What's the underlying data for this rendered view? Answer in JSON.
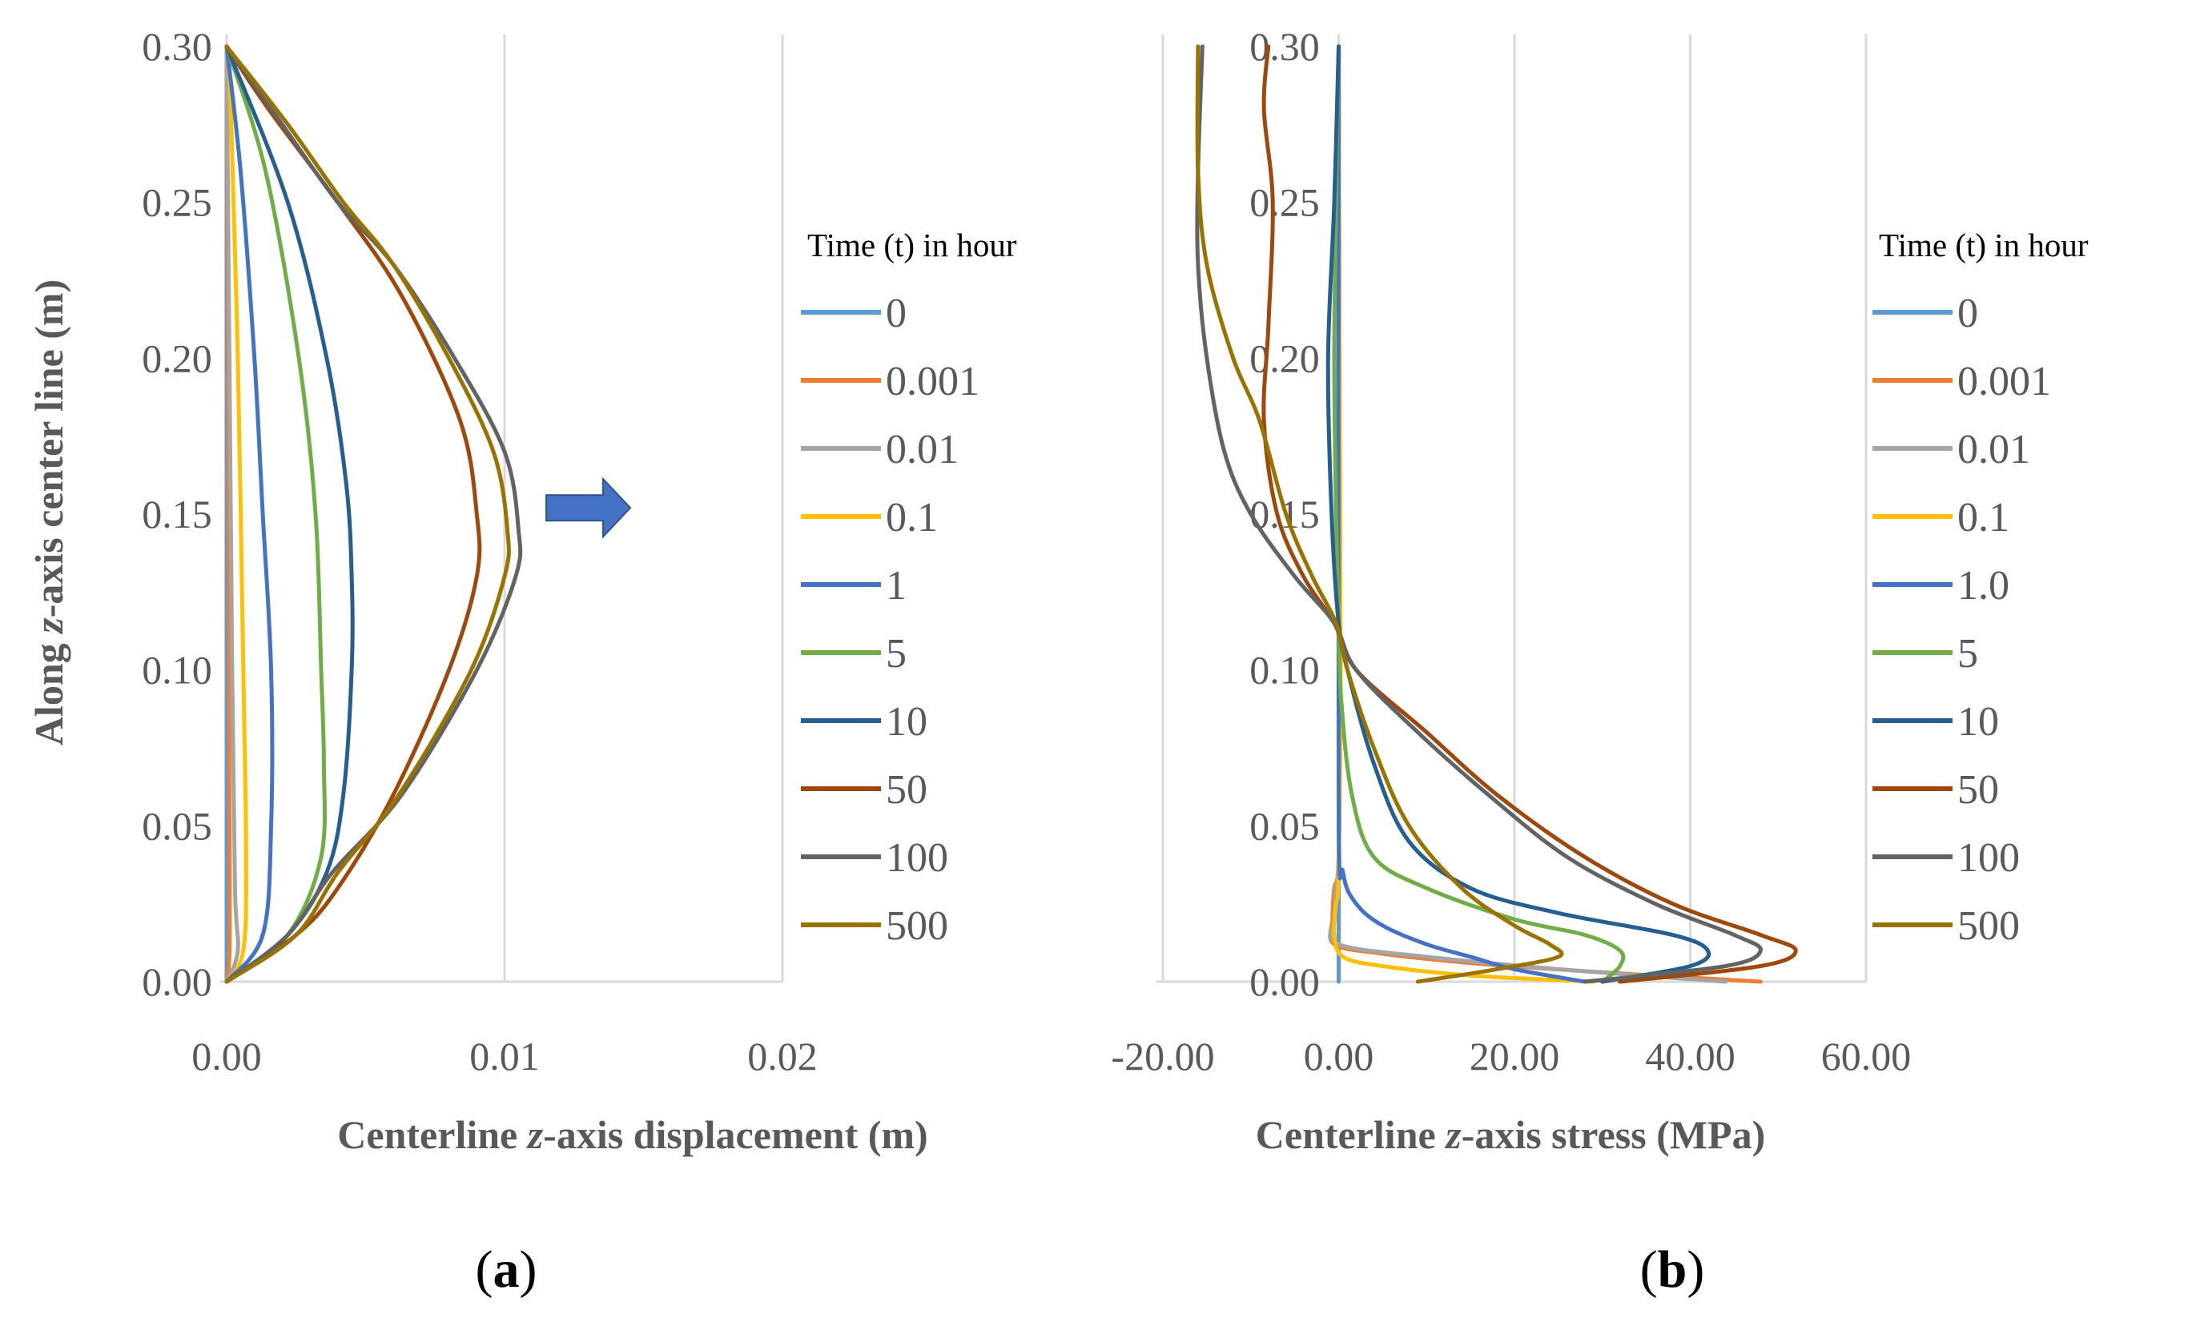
{
  "panel_labels": {
    "a": "a",
    "b": "b"
  },
  "chart_data": [
    {
      "type": "line",
      "panel": "a",
      "xlabel": {
        "pre": "Centerline ",
        "var": "z",
        "post": "-axis displacement (m)"
      },
      "ylabel": {
        "pre": "Along ",
        "var": "z",
        "post": "-axis center line (m)"
      },
      "xlim": [
        0,
        0.02
      ],
      "ylim": [
        0,
        0.3
      ],
      "x_ticks": [
        0,
        0.01,
        0.02
      ],
      "x_tick_labels": [
        "0.00",
        "0.01",
        "0.02"
      ],
      "y_ticks": [
        0,
        0.05,
        0.1,
        0.15,
        0.2,
        0.25,
        0.3
      ],
      "y_tick_labels": [
        "0.00",
        "0.05",
        "0.10",
        "0.15",
        "0.20",
        "0.25",
        "0.30"
      ],
      "grid": "vertical",
      "legend": {
        "title": "Time (t) in hour",
        "placement": "right"
      },
      "annotation": {
        "type": "arrow",
        "direction": "right",
        "x": 0.0115,
        "y": 0.152,
        "color": "#4472C4"
      },
      "series": [
        {
          "name": "0",
          "color": "#5B9BD5",
          "points": [
            [
              0,
              0
            ],
            [
              0,
              0.3
            ]
          ]
        },
        {
          "name": "0.001",
          "color": "#ED7D31",
          "points": [
            [
              0,
              0
            ],
            [
              0.0001,
              0.01
            ],
            [
              0.0001,
              0.05
            ],
            [
              5e-05,
              0.2
            ],
            [
              0,
              0.3
            ]
          ]
        },
        {
          "name": "0.01",
          "color": "#A5A5A5",
          "points": [
            [
              0,
              0
            ],
            [
              0.0004,
              0.01
            ],
            [
              0.0003,
              0.03
            ],
            [
              0.0002,
              0.1
            ],
            [
              0.0001,
              0.2
            ],
            [
              0,
              0.3
            ]
          ]
        },
        {
          "name": "0.1",
          "color": "#FFC000",
          "points": [
            [
              0,
              0
            ],
            [
              0.0006,
              0.01
            ],
            [
              0.0007,
              0.04
            ],
            [
              0.0006,
              0.1
            ],
            [
              0.0004,
              0.2
            ],
            [
              0.00015,
              0.28
            ],
            [
              0,
              0.3
            ]
          ]
        },
        {
          "name": "1",
          "color": "#4472C4",
          "points": [
            [
              0,
              0
            ],
            [
              0.0013,
              0.015
            ],
            [
              0.0016,
              0.05
            ],
            [
              0.0016,
              0.1
            ],
            [
              0.0013,
              0.15
            ],
            [
              0.001,
              0.2
            ],
            [
              0.0005,
              0.26
            ],
            [
              0,
              0.3
            ]
          ]
        },
        {
          "name": "5",
          "color": "#70AD47",
          "points": [
            [
              0,
              0
            ],
            [
              0.0022,
              0.015
            ],
            [
              0.0034,
              0.04
            ],
            [
              0.0035,
              0.07
            ],
            [
              0.0034,
              0.1
            ],
            [
              0.0032,
              0.15
            ],
            [
              0.0026,
              0.2
            ],
            [
              0.0014,
              0.26
            ],
            [
              0,
              0.3
            ]
          ]
        },
        {
          "name": "10",
          "color": "#255E91",
          "points": [
            [
              0,
              0
            ],
            [
              0.0022,
              0.015
            ],
            [
              0.0036,
              0.035
            ],
            [
              0.0042,
              0.06
            ],
            [
              0.0045,
              0.1
            ],
            [
              0.0045,
              0.13
            ],
            [
              0.0043,
              0.16
            ],
            [
              0.0036,
              0.2
            ],
            [
              0.0022,
              0.25
            ],
            [
              0,
              0.3
            ]
          ]
        },
        {
          "name": "50",
          "color": "#9E480E",
          "points": [
            [
              0,
              0
            ],
            [
              0.0025,
              0.015
            ],
            [
              0.004,
              0.03
            ],
            [
              0.006,
              0.06
            ],
            [
              0.008,
              0.1
            ],
            [
              0.009,
              0.13
            ],
            [
              0.009,
              0.15
            ],
            [
              0.0084,
              0.18
            ],
            [
              0.0063,
              0.22
            ],
            [
              0.004,
              0.25
            ],
            [
              0.0015,
              0.28
            ],
            [
              0,
              0.3
            ]
          ]
        },
        {
          "name": "100",
          "color": "#636363",
          "points": [
            [
              0,
              0
            ],
            [
              0.0022,
              0.015
            ],
            [
              0.0038,
              0.035
            ],
            [
              0.0063,
              0.06
            ],
            [
              0.009,
              0.1
            ],
            [
              0.0104,
              0.13
            ],
            [
              0.0105,
              0.145
            ],
            [
              0.01,
              0.17
            ],
            [
              0.0082,
              0.2
            ],
            [
              0.006,
              0.23
            ],
            [
              0.004,
              0.25
            ],
            [
              0.002,
              0.275
            ],
            [
              0,
              0.3
            ]
          ]
        },
        {
          "name": "500",
          "color": "#997300",
          "points": [
            [
              0,
              0
            ],
            [
              0.0025,
              0.015
            ],
            [
              0.004,
              0.035
            ],
            [
              0.0062,
              0.06
            ],
            [
              0.0088,
              0.1
            ],
            [
              0.01,
              0.13
            ],
            [
              0.0101,
              0.145
            ],
            [
              0.0096,
              0.17
            ],
            [
              0.008,
              0.2
            ],
            [
              0.006,
              0.23
            ],
            [
              0.0042,
              0.25
            ],
            [
              0.0022,
              0.275
            ],
            [
              0,
              0.3
            ]
          ]
        }
      ]
    },
    {
      "type": "line",
      "panel": "b",
      "xlabel": {
        "pre": "Centerline ",
        "var": "z",
        "post": "-axis stress (MPa)"
      },
      "xlim": [
        -20,
        60
      ],
      "ylim": [
        0,
        0.3
      ],
      "x_ticks": [
        -20,
        0,
        20,
        40,
        60
      ],
      "x_tick_labels": [
        "-20.00",
        "0.00",
        "20.00",
        "40.00",
        "60.00"
      ],
      "y_ticks": [
        0,
        0.05,
        0.1,
        0.15,
        0.2,
        0.25,
        0.3
      ],
      "y_tick_labels": [
        "0.00",
        "0.05",
        "0.10",
        "0.15",
        "0.20",
        "0.25",
        "0.30"
      ],
      "grid": "vertical",
      "legend": {
        "title": "Time (t) in hour",
        "placement": "right"
      },
      "series": [
        {
          "name": "0",
          "color": "#5B9BD5",
          "points": [
            [
              0,
              0
            ],
            [
              0,
              0.3
            ]
          ]
        },
        {
          "name": "0.001",
          "color": "#ED7D31",
          "points": [
            [
              48,
              0
            ],
            [
              30,
              0.003
            ],
            [
              15,
              0.006
            ],
            [
              5,
              0.009
            ],
            [
              -0.5,
              0.012
            ],
            [
              -0.7,
              0.02
            ],
            [
              -0.5,
              0.03
            ],
            [
              0,
              0.04
            ],
            [
              0.2,
              0.1
            ],
            [
              0.1,
              0.2
            ],
            [
              0,
              0.3
            ]
          ]
        },
        {
          "name": "0.01",
          "color": "#A5A5A5",
          "points": [
            [
              44,
              0
            ],
            [
              25,
              0.004
            ],
            [
              10,
              0.008
            ],
            [
              0,
              0.012
            ],
            [
              -0.5,
              0.02
            ],
            [
              -0.3,
              0.03
            ],
            [
              0,
              0.04
            ],
            [
              0.2,
              0.1
            ],
            [
              0.1,
              0.2
            ],
            [
              0,
              0.3
            ]
          ]
        },
        {
          "name": "0.1",
          "color": "#FFC000",
          "points": [
            [
              29,
              0
            ],
            [
              15,
              0.002
            ],
            [
              5,
              0.005
            ],
            [
              0.5,
              0.008
            ],
            [
              -0.5,
              0.015
            ],
            [
              -0.3,
              0.025
            ],
            [
              0,
              0.035
            ],
            [
              0.2,
              0.1
            ],
            [
              0.1,
              0.2
            ],
            [
              0,
              0.3
            ]
          ]
        },
        {
          "name": "1.0",
          "color": "#4472C4",
          "points": [
            [
              28,
              0
            ],
            [
              20,
              0.004
            ],
            [
              15,
              0.008
            ],
            [
              10,
              0.012
            ],
            [
              5,
              0.018
            ],
            [
              2,
              0.025
            ],
            [
              0.5,
              0.035
            ],
            [
              0,
              0.06
            ],
            [
              0,
              0.3
            ]
          ]
        },
        {
          "name": "5",
          "color": "#70AD47",
          "points": [
            [
              30,
              0
            ],
            [
              32,
              0.005
            ],
            [
              32,
              0.01
            ],
            [
              28,
              0.015
            ],
            [
              20,
              0.02
            ],
            [
              10,
              0.03
            ],
            [
              4,
              0.04
            ],
            [
              1.5,
              0.06
            ],
            [
              0.3,
              0.09
            ],
            [
              0,
              0.115
            ],
            [
              -0.3,
              0.15
            ],
            [
              -0.5,
              0.2
            ],
            [
              -0.3,
              0.25
            ],
            [
              0,
              0.3
            ]
          ]
        },
        {
          "name": "10",
          "color": "#255E91",
          "points": [
            [
              30,
              0
            ],
            [
              40,
              0.005
            ],
            [
              42,
              0.01
            ],
            [
              38,
              0.015
            ],
            [
              25,
              0.022
            ],
            [
              15,
              0.03
            ],
            [
              8,
              0.045
            ],
            [
              4,
              0.07
            ],
            [
              1,
              0.1
            ],
            [
              0,
              0.115
            ],
            [
              -0.8,
              0.15
            ],
            [
              -1.2,
              0.2
            ],
            [
              -0.5,
              0.25
            ],
            [
              0,
              0.3
            ]
          ]
        },
        {
          "name": "50",
          "color": "#9E480E",
          "points": [
            [
              32,
              0
            ],
            [
              48,
              0.005
            ],
            [
              52,
              0.01
            ],
            [
              48,
              0.015
            ],
            [
              38,
              0.025
            ],
            [
              28,
              0.04
            ],
            [
              18,
              0.06
            ],
            [
              10,
              0.08
            ],
            [
              2,
              0.1
            ],
            [
              -0.5,
              0.115
            ],
            [
              -4,
              0.13
            ],
            [
              -7,
              0.15
            ],
            [
              -8.5,
              0.18
            ],
            [
              -8,
              0.21
            ],
            [
              -7.5,
              0.25
            ],
            [
              -8.5,
              0.28
            ],
            [
              -8,
              0.3
            ]
          ]
        },
        {
          "name": "100",
          "color": "#636363",
          "points": [
            [
              28,
              0
            ],
            [
              44,
              0.005
            ],
            [
              48,
              0.01
            ],
            [
              45,
              0.015
            ],
            [
              36,
              0.025
            ],
            [
              26,
              0.04
            ],
            [
              17,
              0.06
            ],
            [
              9,
              0.08
            ],
            [
              2,
              0.1
            ],
            [
              -0.5,
              0.115
            ],
            [
              -5,
              0.13
            ],
            [
              -10,
              0.15
            ],
            [
              -13,
              0.17
            ],
            [
              -15,
              0.2
            ],
            [
              -16,
              0.23
            ],
            [
              -16,
              0.26
            ],
            [
              -15.5,
              0.3
            ]
          ]
        },
        {
          "name": "500",
          "color": "#997300",
          "points": [
            [
              9,
              0
            ],
            [
              18,
              0.004
            ],
            [
              25,
              0.008
            ],
            [
              24,
              0.012
            ],
            [
              20,
              0.018
            ],
            [
              14,
              0.03
            ],
            [
              8,
              0.05
            ],
            [
              4,
              0.075
            ],
            [
              1,
              0.1
            ],
            [
              -0.3,
              0.115
            ],
            [
              -3,
              0.13
            ],
            [
              -6,
              0.15
            ],
            [
              -9,
              0.18
            ],
            [
              -12,
              0.2
            ],
            [
              -15,
              0.23
            ],
            [
              -16,
              0.26
            ],
            [
              -16,
              0.3
            ]
          ]
        }
      ]
    }
  ]
}
